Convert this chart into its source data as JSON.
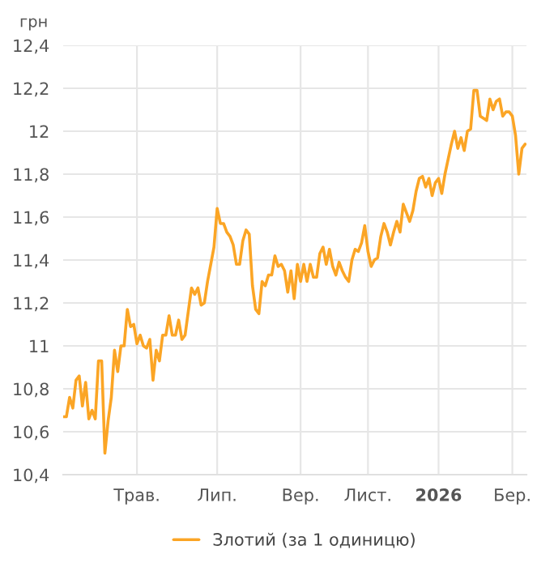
{
  "chart_data": {
    "type": "line",
    "ylabel": "грн",
    "categories": [
      null,
      null,
      null,
      null,
      null,
      null,
      null,
      null,
      null,
      null,
      null,
      null,
      null,
      null,
      null,
      null,
      null,
      null,
      null,
      null,
      null,
      null,
      null,
      "Трав.",
      null,
      null,
      null,
      null,
      null,
      null,
      null,
      null,
      null,
      null,
      null,
      null,
      null,
      null,
      null,
      null,
      null,
      null,
      null,
      null,
      null,
      null,
      null,
      null,
      "Лип.",
      null,
      null,
      null,
      null,
      null,
      null,
      null,
      null,
      null,
      null,
      null,
      null,
      null,
      null,
      null,
      null,
      null,
      null,
      null,
      null,
      null,
      null,
      null,
      null,
      null,
      "Вер.",
      null,
      null,
      null,
      null,
      null,
      null,
      null,
      null,
      null,
      null,
      null,
      null,
      null,
      null,
      null,
      null,
      null,
      null,
      null,
      null,
      "Лист.",
      null,
      null,
      null,
      null,
      null,
      null,
      null,
      null,
      null,
      null,
      null,
      null,
      null,
      null,
      null,
      null,
      null,
      null,
      null,
      null,
      null,
      "2026",
      null,
      null,
      null,
      null,
      null,
      null,
      null,
      null,
      null,
      null,
      null,
      null,
      null,
      null,
      null,
      null,
      null,
      null,
      null,
      null,
      null,
      null,
      "Бер.",
      null,
      null,
      null,
      null
    ],
    "series": [
      {
        "name": "Злотий (за 1 одиницю)",
        "color": "#fba525",
        "values": [
          10.67,
          10.67,
          10.76,
          10.71,
          10.84,
          10.86,
          10.72,
          10.83,
          10.66,
          10.7,
          10.66,
          10.93,
          10.93,
          10.5,
          10.65,
          10.76,
          10.98,
          10.88,
          11.0,
          11.0,
          11.17,
          11.09,
          11.1,
          11.01,
          11.05,
          11.0,
          10.99,
          11.03,
          10.84,
          10.98,
          10.93,
          11.05,
          11.05,
          11.14,
          11.05,
          11.05,
          11.12,
          11.03,
          11.05,
          11.16,
          11.27,
          11.24,
          11.27,
          11.19,
          11.2,
          11.3,
          11.38,
          11.46,
          11.64,
          11.57,
          11.57,
          11.53,
          11.51,
          11.47,
          11.38,
          11.38,
          11.49,
          11.54,
          11.52,
          11.28,
          11.17,
          11.15,
          11.3,
          11.28,
          11.33,
          11.33,
          11.42,
          11.37,
          11.38,
          11.35,
          11.25,
          11.35,
          11.22,
          11.38,
          11.3,
          11.38,
          11.3,
          11.38,
          11.32,
          11.32,
          11.43,
          11.46,
          11.38,
          11.45,
          11.37,
          11.33,
          11.39,
          11.35,
          11.32,
          11.3,
          11.4,
          11.45,
          11.44,
          11.48,
          11.56,
          11.44,
          11.37,
          11.4,
          11.41,
          11.51,
          11.57,
          11.53,
          11.47,
          11.53,
          11.58,
          11.53,
          11.66,
          11.62,
          11.58,
          11.63,
          11.72,
          11.78,
          11.79,
          11.74,
          11.78,
          11.7,
          11.76,
          11.78,
          11.71,
          11.8,
          11.87,
          11.94,
          12.0,
          11.92,
          11.97,
          11.91,
          12.0,
          12.01,
          12.19,
          12.19,
          12.07,
          12.06,
          12.05,
          12.15,
          12.1,
          12.14,
          12.15,
          12.07,
          12.09,
          12.09,
          12.07,
          11.98,
          11.8,
          11.92,
          11.94
        ]
      }
    ],
    "ylim": [
      10.4,
      12.4
    ],
    "yticks": [
      {
        "value": 10.4,
        "label": "10,4"
      },
      {
        "value": 10.6,
        "label": "10,6"
      },
      {
        "value": 10.8,
        "label": "10,8"
      },
      {
        "value": 11,
        "label": "11"
      },
      {
        "value": 11.2,
        "label": "11,2"
      },
      {
        "value": 11.4,
        "label": "11,4"
      },
      {
        "value": 11.6,
        "label": "11,6"
      },
      {
        "value": 11.8,
        "label": "11,8"
      },
      {
        "value": 12,
        "label": "12"
      },
      {
        "value": 12.2,
        "label": "12,2"
      },
      {
        "value": 12.4,
        "label": "12,4"
      }
    ],
    "grid": true,
    "legend": "bottom",
    "marker": "none",
    "line_style": "solid"
  }
}
